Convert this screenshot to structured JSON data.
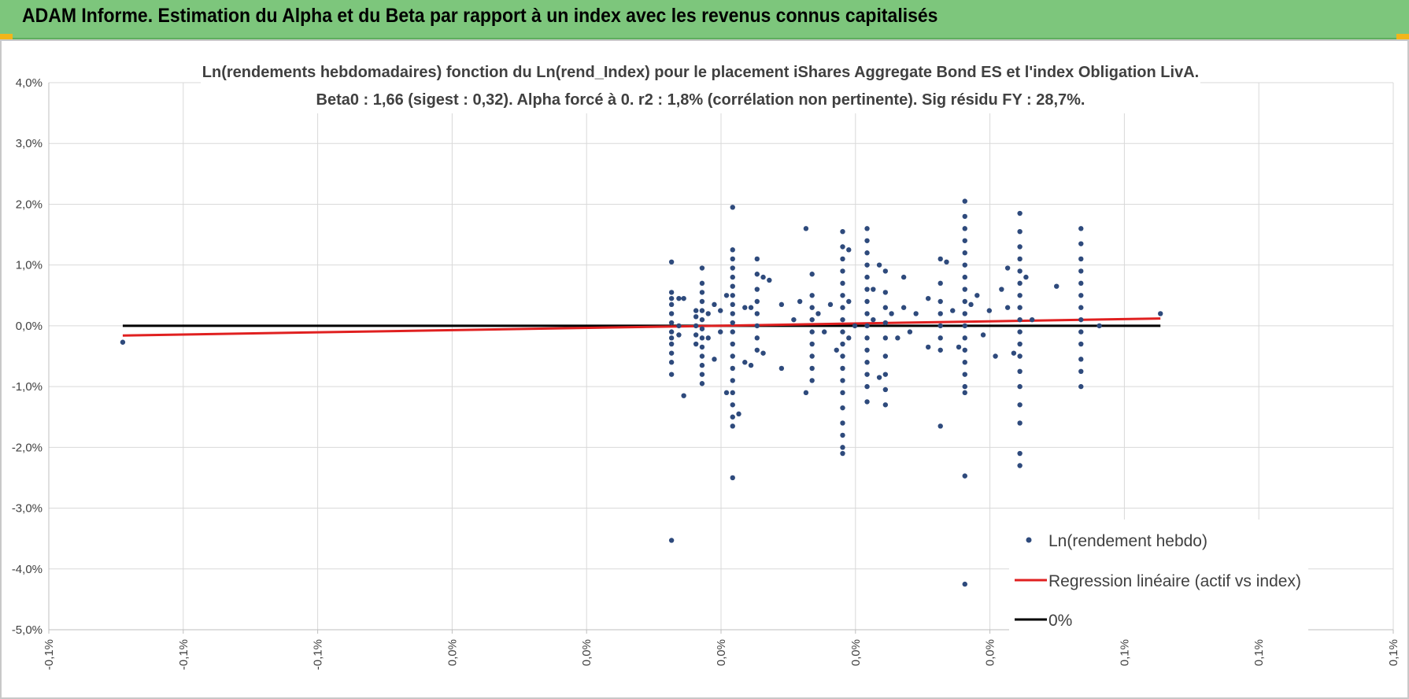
{
  "header": {
    "title": "ADAM Informe. Estimation du Alpha et du Beta par rapport à un index avec les revenus connus capitalisés"
  },
  "chart_data": {
    "type": "scatter",
    "title_line1": "Ln(rendements hebdomadaires) fonction du Ln(rend_Index) pour le placement iShares Aggregate Bond ES et l'index Obligation LivA.",
    "title_line2": "Beta0 : 1,66  (sigest : 0,32).  Alpha forcé à 0.  r2 : 1,8% (corrélation non pertinente). Sig résidu FY : 28,7%.",
    "x_range": [
      -0.11,
      0.11
    ],
    "y_range": [
      -5,
      4
    ],
    "y_ticks": [
      "4,0%",
      "3,0%",
      "2,0%",
      "1,0%",
      "0,0%",
      "-1,0%",
      "-2,0%",
      "-3,0%",
      "-4,0%",
      "-5,0%"
    ],
    "x_ticks": [
      "-0,1%",
      "-0,1%",
      "-0,1%",
      "0,0%",
      "0,0%",
      "0,0%",
      "0,0%",
      "0,0%",
      "0,1%",
      "0,1%",
      "0,1%"
    ],
    "grid": true,
    "legend_position": "bottom-right",
    "series": [
      {
        "name": "Ln(rendement hebdo)",
        "marker": "dot",
        "color": "#2e4a7c",
        "points": [
          [
            -0.0979,
            -0.27
          ],
          [
            -0.0081,
            -3.53
          ],
          [
            -0.0081,
            1.05
          ],
          [
            -0.0081,
            0.55
          ],
          [
            -0.0081,
            0.45
          ],
          [
            -0.0081,
            0.35
          ],
          [
            -0.0081,
            0.2
          ],
          [
            -0.0081,
            0.05
          ],
          [
            -0.0081,
            -0.1
          ],
          [
            -0.0081,
            -0.2
          ],
          [
            -0.0081,
            -0.3
          ],
          [
            -0.0081,
            -0.45
          ],
          [
            -0.0081,
            -0.6
          ],
          [
            -0.0081,
            -0.8
          ],
          [
            -0.0069,
            0.0
          ],
          [
            -0.0069,
            -0.15
          ],
          [
            -0.0069,
            0.45
          ],
          [
            -0.0061,
            -1.15
          ],
          [
            -0.0061,
            0.45
          ],
          [
            -0.0041,
            0.25
          ],
          [
            -0.0041,
            0.15
          ],
          [
            -0.0041,
            0.0
          ],
          [
            -0.0041,
            -0.15
          ],
          [
            -0.0041,
            -0.3
          ],
          [
            -0.0031,
            0.95
          ],
          [
            -0.0031,
            0.7
          ],
          [
            -0.0031,
            0.55
          ],
          [
            -0.0031,
            0.4
          ],
          [
            -0.0031,
            0.25
          ],
          [
            -0.0031,
            0.1
          ],
          [
            -0.0031,
            -0.05
          ],
          [
            -0.0031,
            -0.2
          ],
          [
            -0.0031,
            -0.35
          ],
          [
            -0.0031,
            -0.5
          ],
          [
            -0.0031,
            -0.65
          ],
          [
            -0.0031,
            -0.8
          ],
          [
            -0.0031,
            -0.95
          ],
          [
            -0.0021,
            0.2
          ],
          [
            -0.0021,
            -0.2
          ],
          [
            -0.0011,
            0.35
          ],
          [
            -0.0011,
            -0.55
          ],
          [
            -0.0001,
            0.25
          ],
          [
            -0.0001,
            -0.1
          ],
          [
            0.0009,
            -1.1
          ],
          [
            0.0009,
            0.5
          ],
          [
            0.0019,
            1.95
          ],
          [
            0.0019,
            1.25
          ],
          [
            0.0019,
            1.1
          ],
          [
            0.0019,
            0.95
          ],
          [
            0.0019,
            0.8
          ],
          [
            0.0019,
            0.65
          ],
          [
            0.0019,
            0.5
          ],
          [
            0.0019,
            0.35
          ],
          [
            0.0019,
            0.2
          ],
          [
            0.0019,
            0.05
          ],
          [
            0.0019,
            -0.1
          ],
          [
            0.0019,
            -0.3
          ],
          [
            0.0019,
            -0.5
          ],
          [
            0.0019,
            -0.7
          ],
          [
            0.0019,
            -0.9
          ],
          [
            0.0019,
            -1.1
          ],
          [
            0.0019,
            -1.3
          ],
          [
            0.0019,
            -1.5
          ],
          [
            0.0019,
            -1.65
          ],
          [
            0.0019,
            -2.5
          ],
          [
            0.0029,
            -1.45
          ],
          [
            0.0039,
            0.3
          ],
          [
            0.0039,
            -0.6
          ],
          [
            0.0049,
            -0.65
          ],
          [
            0.0049,
            0.3
          ],
          [
            0.0059,
            1.1
          ],
          [
            0.0059,
            0.85
          ],
          [
            0.0059,
            0.6
          ],
          [
            0.0059,
            0.4
          ],
          [
            0.0059,
            0.2
          ],
          [
            0.0059,
            0.0
          ],
          [
            0.0059,
            -0.2
          ],
          [
            0.0059,
            -0.4
          ],
          [
            0.0069,
            0.8
          ],
          [
            0.0069,
            -0.45
          ],
          [
            0.0079,
            0.75
          ],
          [
            0.0099,
            0.35
          ],
          [
            0.0099,
            -0.7
          ],
          [
            0.0119,
            0.1
          ],
          [
            0.0129,
            0.4
          ],
          [
            0.0139,
            1.6
          ],
          [
            0.0139,
            -1.1
          ],
          [
            0.0149,
            0.85
          ],
          [
            0.0149,
            0.5
          ],
          [
            0.0149,
            0.3
          ],
          [
            0.0149,
            0.1
          ],
          [
            0.0149,
            -0.1
          ],
          [
            0.0149,
            -0.3
          ],
          [
            0.0149,
            -0.5
          ],
          [
            0.0149,
            -0.7
          ],
          [
            0.0149,
            -0.9
          ],
          [
            0.0159,
            0.2
          ],
          [
            0.0169,
            -0.1
          ],
          [
            0.0179,
            0.35
          ],
          [
            0.0189,
            -0.4
          ],
          [
            0.0199,
            1.55
          ],
          [
            0.0199,
            1.3
          ],
          [
            0.0199,
            1.1
          ],
          [
            0.0199,
            0.9
          ],
          [
            0.0199,
            0.7
          ],
          [
            0.0199,
            0.5
          ],
          [
            0.0199,
            0.3
          ],
          [
            0.0199,
            0.1
          ],
          [
            0.0199,
            -0.1
          ],
          [
            0.0199,
            -0.3
          ],
          [
            0.0199,
            -0.5
          ],
          [
            0.0199,
            -0.7
          ],
          [
            0.0199,
            -0.9
          ],
          [
            0.0199,
            -1.1
          ],
          [
            0.0199,
            -1.35
          ],
          [
            0.0199,
            -1.6
          ],
          [
            0.0199,
            -1.8
          ],
          [
            0.0199,
            -2.0
          ],
          [
            0.0199,
            -2.1
          ],
          [
            0.0209,
            1.25
          ],
          [
            0.0209,
            0.4
          ],
          [
            0.0209,
            -0.2
          ],
          [
            0.0219,
            0.0
          ],
          [
            0.0239,
            1.6
          ],
          [
            0.0239,
            1.4
          ],
          [
            0.0239,
            1.2
          ],
          [
            0.0239,
            1.0
          ],
          [
            0.0239,
            0.8
          ],
          [
            0.0239,
            0.6
          ],
          [
            0.0239,
            0.4
          ],
          [
            0.0239,
            0.2
          ],
          [
            0.0239,
            0.0
          ],
          [
            0.0239,
            -0.2
          ],
          [
            0.0239,
            -0.4
          ],
          [
            0.0239,
            -0.6
          ],
          [
            0.0239,
            -0.8
          ],
          [
            0.0239,
            -1.0
          ],
          [
            0.0239,
            -1.25
          ],
          [
            0.0249,
            0.6
          ],
          [
            0.0249,
            0.1
          ],
          [
            0.0259,
            1.0
          ],
          [
            0.0259,
            -0.85
          ],
          [
            0.0269,
            0.9
          ],
          [
            0.0269,
            0.55
          ],
          [
            0.0269,
            0.3
          ],
          [
            0.0269,
            0.05
          ],
          [
            0.0269,
            -0.2
          ],
          [
            0.0269,
            -0.5
          ],
          [
            0.0269,
            -0.8
          ],
          [
            0.0269,
            -1.05
          ],
          [
            0.0269,
            -1.3
          ],
          [
            0.0279,
            0.2
          ],
          [
            0.0289,
            -0.2
          ],
          [
            0.0299,
            0.8
          ],
          [
            0.0299,
            0.3
          ],
          [
            0.0309,
            -0.1
          ],
          [
            0.0319,
            0.2
          ],
          [
            0.0339,
            0.45
          ],
          [
            0.0339,
            -0.35
          ],
          [
            0.0359,
            1.1
          ],
          [
            0.0359,
            0.7
          ],
          [
            0.0359,
            0.4
          ],
          [
            0.0359,
            0.2
          ],
          [
            0.0359,
            0.0
          ],
          [
            0.0359,
            -0.2
          ],
          [
            0.0359,
            -0.4
          ],
          [
            0.0359,
            -1.65
          ],
          [
            0.0369,
            1.05
          ],
          [
            0.0379,
            0.25
          ],
          [
            0.0389,
            -0.35
          ],
          [
            0.0399,
            2.05
          ],
          [
            0.0399,
            1.8
          ],
          [
            0.0399,
            1.6
          ],
          [
            0.0399,
            1.4
          ],
          [
            0.0399,
            1.2
          ],
          [
            0.0399,
            1.0
          ],
          [
            0.0399,
            0.8
          ],
          [
            0.0399,
            0.6
          ],
          [
            0.0399,
            0.4
          ],
          [
            0.0399,
            0.2
          ],
          [
            0.0399,
            0.0
          ],
          [
            0.0399,
            -0.2
          ],
          [
            0.0399,
            -0.4
          ],
          [
            0.0399,
            -0.6
          ],
          [
            0.0399,
            -0.8
          ],
          [
            0.0399,
            -1.0
          ],
          [
            0.0399,
            -1.1
          ],
          [
            0.0399,
            -2.47
          ],
          [
            0.0399,
            -4.25
          ],
          [
            0.0409,
            0.35
          ],
          [
            0.0419,
            0.5
          ],
          [
            0.0429,
            -0.15
          ],
          [
            0.0439,
            0.25
          ],
          [
            0.0449,
            -0.5
          ],
          [
            0.0459,
            0.6
          ],
          [
            0.0469,
            0.95
          ],
          [
            0.0469,
            0.3
          ],
          [
            0.0479,
            -0.45
          ],
          [
            0.0489,
            1.85
          ],
          [
            0.0489,
            1.55
          ],
          [
            0.0489,
            1.3
          ],
          [
            0.0489,
            1.1
          ],
          [
            0.0489,
            0.9
          ],
          [
            0.0489,
            0.7
          ],
          [
            0.0489,
            0.5
          ],
          [
            0.0489,
            0.3
          ],
          [
            0.0489,
            0.1
          ],
          [
            0.0489,
            -0.1
          ],
          [
            0.0489,
            -0.3
          ],
          [
            0.0489,
            -0.5
          ],
          [
            0.0489,
            -0.75
          ],
          [
            0.0489,
            -1.0
          ],
          [
            0.0489,
            -1.3
          ],
          [
            0.0489,
            -1.6
          ],
          [
            0.0489,
            -2.1
          ],
          [
            0.0489,
            -2.3
          ],
          [
            0.0499,
            0.8
          ],
          [
            0.0509,
            0.1
          ],
          [
            0.0549,
            0.65
          ],
          [
            0.0589,
            1.6
          ],
          [
            0.0589,
            1.35
          ],
          [
            0.0589,
            1.1
          ],
          [
            0.0589,
            0.9
          ],
          [
            0.0589,
            0.7
          ],
          [
            0.0589,
            0.5
          ],
          [
            0.0589,
            0.3
          ],
          [
            0.0589,
            0.1
          ],
          [
            0.0589,
            -0.1
          ],
          [
            0.0589,
            -0.3
          ],
          [
            0.0589,
            -0.55
          ],
          [
            0.0589,
            -0.75
          ],
          [
            0.0589,
            -1.0
          ],
          [
            0.0619,
            0.0
          ],
          [
            0.0719,
            0.2
          ]
        ]
      },
      {
        "name": "Regression linéaire (actif vs index)",
        "color": "#e02020",
        "points": [
          [
            -0.0979,
            -0.16
          ],
          [
            0.0719,
            0.12
          ]
        ]
      },
      {
        "name": "0%",
        "color": "#000000",
        "points": [
          [
            -0.0979,
            0
          ],
          [
            0.0719,
            0
          ]
        ]
      }
    ]
  }
}
